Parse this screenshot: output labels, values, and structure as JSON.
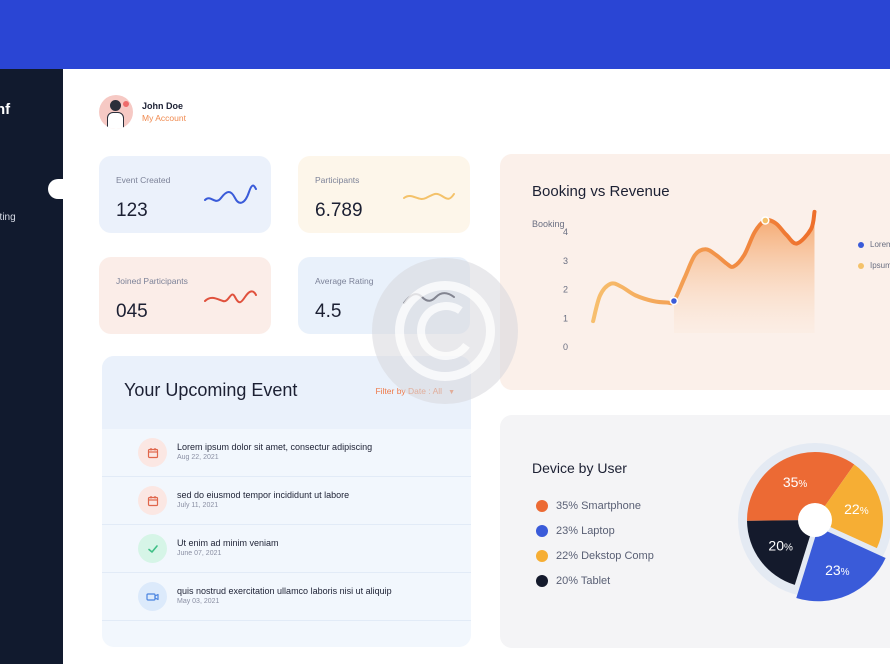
{
  "sidebar": {
    "brand": "nf",
    "nav_item": "eting"
  },
  "profile": {
    "name": "John Doe",
    "link": "My Account"
  },
  "stats": [
    {
      "label": "Event Created",
      "value": "123",
      "color": "#3a5bd9"
    },
    {
      "label": "Participants",
      "value": "6.789",
      "color": "#f4c26a"
    },
    {
      "label": "Joined Participants",
      "value": "045",
      "color": "#e0513d"
    },
    {
      "label": "Average Rating",
      "value": "4.5",
      "color": "#1c2033"
    }
  ],
  "events": {
    "title": "Your Upcoming Event",
    "filter": "Filter by Date : All",
    "items": [
      {
        "title": "Lorem ipsum dolor sit amet, consectur adipiscing",
        "date": "Aug 22, 2021",
        "icon": "calendar-icon",
        "bg": "#fbe7e3",
        "fg": "#e0664b"
      },
      {
        "title": "sed do eiusmod tempor incididunt ut labore",
        "date": "July 11, 2021",
        "icon": "calendar-icon",
        "bg": "#fbe7e3",
        "fg": "#e0664b"
      },
      {
        "title": "Ut enim ad minim veniam",
        "date": "June 07, 2021",
        "icon": "check-icon",
        "bg": "#d6f5e7",
        "fg": "#3fbf86"
      },
      {
        "title": "quis nostrud exercitation ullamco laboris nisi ut aliquip",
        "date": "May 03, 2021",
        "icon": "video-icon",
        "bg": "#dceafb",
        "fg": "#4a84e0"
      }
    ]
  },
  "booking": {
    "title": "Booking vs Revenue",
    "ylabel": "Booking",
    "legend": [
      "Lorem",
      "Ipsum"
    ],
    "legend_colors": [
      "#3a5bd9",
      "#f4c26a"
    ]
  },
  "device": {
    "title": "Device by User",
    "items": [
      {
        "label": "35% Smartphone",
        "color": "#ec6a34"
      },
      {
        "label": "23% Laptop",
        "color": "#3a5bd9"
      },
      {
        "label": "22% Dekstop Comp",
        "color": "#f6ae34"
      },
      {
        "label": "20% Tablet",
        "color": "#141a2c"
      }
    ]
  },
  "chart_data": [
    {
      "type": "line",
      "title": "Booking vs Revenue",
      "ylabel": "Booking",
      "x": [
        8,
        10,
        13,
        16,
        20,
        25,
        29,
        31,
        34,
        37,
        40,
        43,
        46,
        48,
        51,
        54,
        57,
        60,
        63,
        66,
        70,
        71
      ],
      "series": [
        {
          "values": [
            0.9,
            1.8,
            2.2,
            2.1,
            1.8,
            1.6,
            1.55,
            1.6,
            2.4,
            3.2,
            3.4,
            3.2,
            2.9,
            2.8,
            3.2,
            4.0,
            4.4,
            4.3,
            3.9,
            3.6,
            4.1,
            4.7
          ]
        }
      ],
      "xticks": [
        0,
        10,
        20,
        30,
        40,
        50,
        60,
        70
      ],
      "yticks": [
        0,
        1,
        2,
        3,
        4
      ],
      "xlim": [
        0,
        72
      ],
      "ylim": [
        0,
        4.8
      ],
      "highlight_points": [
        {
          "x": 31,
          "y": 1.6
        },
        {
          "x": 57,
          "y": 4.4
        }
      ],
      "grid": false,
      "legend": "right"
    },
    {
      "type": "pie",
      "title": "Device by User",
      "slices": [
        {
          "label": "Smartphone",
          "value": 35,
          "display": "35",
          "color": "#ec6a34"
        },
        {
          "label": "Dekstop Comp",
          "value": 22,
          "display": "22",
          "color": "#f6ae34"
        },
        {
          "label": "Laptop",
          "value": 23,
          "display": "23",
          "color": "#3a5bd9"
        },
        {
          "label": "Tablet",
          "value": 20,
          "display": "20",
          "color": "#141a2c"
        }
      ],
      "unit": "%"
    }
  ]
}
